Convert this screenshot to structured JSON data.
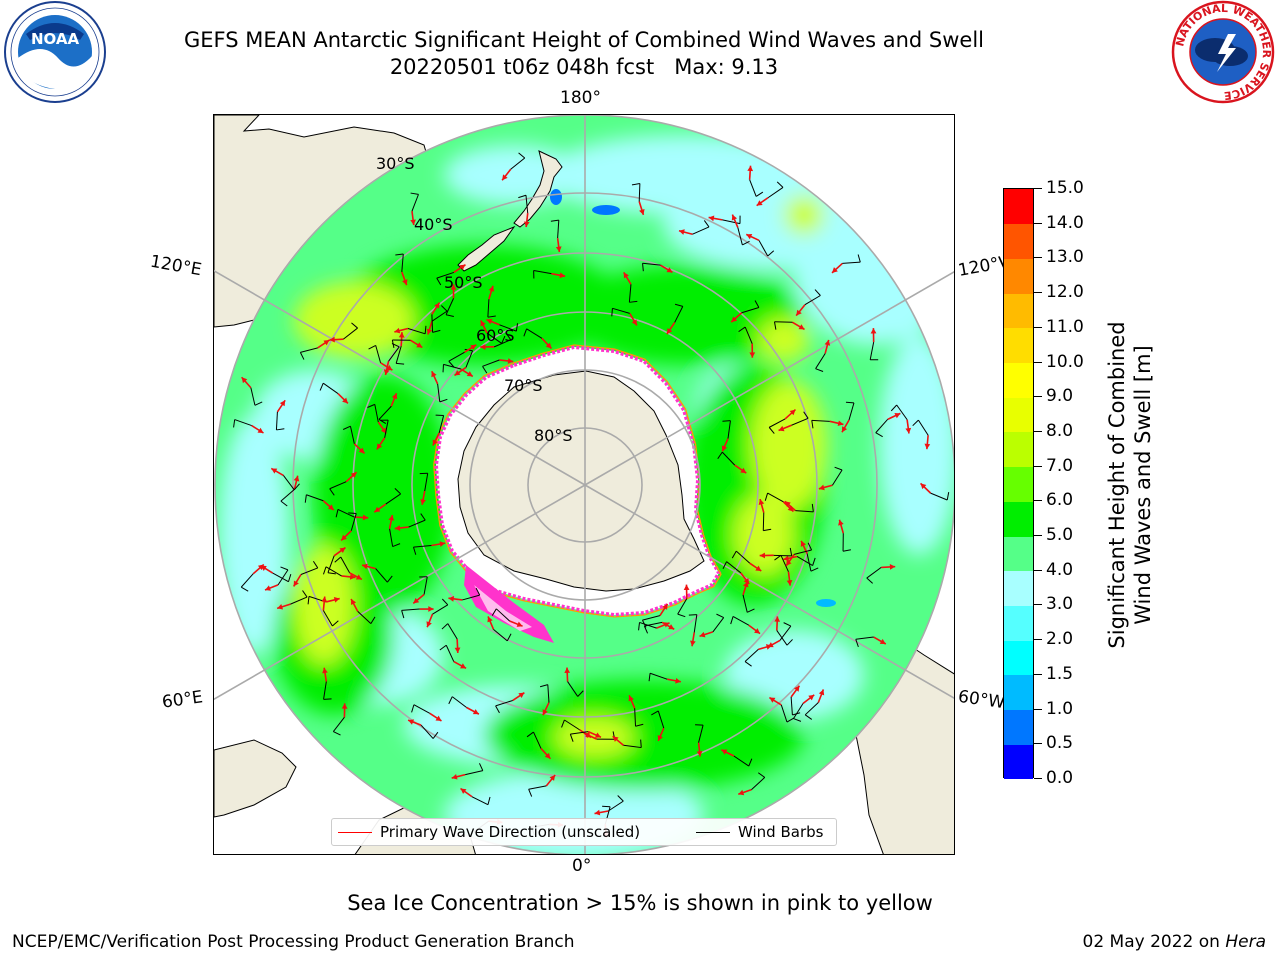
{
  "title": {
    "line1": "GEFS MEAN Antarctic Significant Height of Combined Wind Waves and Swell",
    "line2": "20220501 t06z 048h fcst   Max: 9.13"
  },
  "logos": {
    "left": {
      "name": "NOAA",
      "text": "NOAA",
      "ring_text": "NATIONAL OCEANIC AND ATMOSPHERIC ADMINISTRATION · U.S. DEPARTMENT OF COMMERCE"
    },
    "right": {
      "name": "National Weather Service",
      "ring_text": "NATIONAL WEATHER SERVICE"
    }
  },
  "map": {
    "projection": "south-polar-stereographic",
    "longitude_labels": {
      "top": "180°",
      "bottom": "0°",
      "upper_left": "120°E",
      "upper_right": "120°W",
      "lower_left": "60°E",
      "lower_right": "60°W"
    },
    "latitude_labels": [
      "30°S",
      "40°S",
      "50°S",
      "60°S",
      "70°S",
      "80°S"
    ],
    "land_color": "#efecdc",
    "ice_color": "#ffffff",
    "sea_ice_edge_colors": [
      "#ff33cc",
      "#ff9900",
      "#ffdd00"
    ],
    "wave_arrow_color": "#ee1111",
    "wind_barb_color": "#000000"
  },
  "legend": {
    "primary_wave": "Primary Wave Direction (unscaled)",
    "wind_barbs": "Wind Barbs",
    "primary_wave_color": "#ff0000",
    "wind_barbs_color": "#000000"
  },
  "colorbar": {
    "label": "Significant Height of Combined Wind Waves and Swell [m]",
    "label_line1": "Significant Height of Combined",
    "label_line2": "Wind Waves and Swell [m]",
    "ticks": [
      "0.0",
      "0.5",
      "1.0",
      "1.5",
      "2.0",
      "3.0",
      "4.0",
      "5.0",
      "6.0",
      "7.0",
      "8.0",
      "9.0",
      "10.0",
      "11.0",
      "12.0",
      "13.0",
      "14.0",
      "15.0"
    ],
    "colors": [
      "#0000ff",
      "#0077ff",
      "#00bbff",
      "#00ffff",
      "#55ffff",
      "#a8ffff",
      "#55ff88",
      "#00ee00",
      "#66ff00",
      "#bbff00",
      "#e8ff00",
      "#ffff00",
      "#ffdd00",
      "#ffbb00",
      "#ff8800",
      "#ff5500",
      "#ff0000"
    ]
  },
  "sea_ice_note": "Sea Ice Concentration > 15% is shown in pink to yellow",
  "footer": {
    "left": "NCEP/EMC/Verification Post Processing Product Generation Branch",
    "date": "02 May 2022 on ",
    "host": "Hera"
  }
}
